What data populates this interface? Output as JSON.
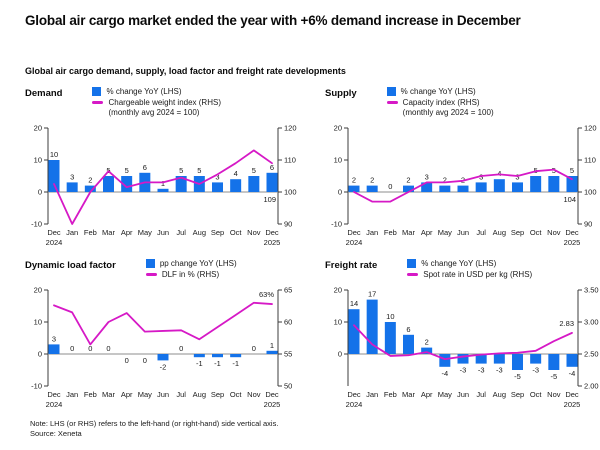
{
  "title": "Global air cargo market ended the year with +6% demand increase in December",
  "subtitle": "Global air cargo demand, supply, load factor and freight rate developments",
  "note": {
    "line1": "Note: LHS (or RHS) refers to the left-hand (or right-hand) side vertical axis.",
    "line2": "Source: Xeneta"
  },
  "colors": {
    "bar": "#1472e9",
    "line": "#d619c6",
    "text": "#1a1a1a",
    "axis": "#3c3c3c",
    "zero_line": "#8c8c8c"
  },
  "months": [
    "Dec",
    "Jan",
    "Feb",
    "Mar",
    "Apr",
    "May",
    "Jun",
    "Jul",
    "Aug",
    "Sep",
    "Oct",
    "Nov",
    "Dec"
  ],
  "start_year": "2024",
  "end_year": "2025",
  "chart_data": [
    {
      "type": "bar+line",
      "title": "Demand",
      "legend": {
        "bar": "% change YoY (LHS)",
        "line": "Chargeable weight index (RHS)",
        "line2": "(monthly avg 2024 = 100)"
      },
      "lhs_ticks": [
        20,
        10,
        0,
        -10
      ],
      "lhs_tick_labels": [
        "20",
        "10",
        "0",
        "-10"
      ],
      "rhs_ticks": [
        120,
        110,
        100,
        90
      ],
      "rhs_tick_labels": [
        "120",
        "110",
        "100",
        "90"
      ],
      "bar_values": [
        10,
        3,
        2,
        5,
        5,
        6,
        1,
        5,
        5,
        3,
        4,
        5,
        6
      ],
      "bar_labels": [
        "10",
        "3",
        "2",
        "5",
        "5",
        "6",
        "1",
        "5",
        "5",
        "3",
        "4",
        "5",
        "6"
      ],
      "line_values": [
        102.5,
        90,
        100,
        106.5,
        101.5,
        103,
        103,
        104.5,
        102.5,
        105.5,
        109,
        113,
        109
      ],
      "end_label": {
        "text": "109",
        "position": "below-zero"
      }
    },
    {
      "type": "bar+line",
      "title": "Supply",
      "legend": {
        "bar": "% change YoY (LHS)",
        "line": "Capacity index (RHS)",
        "line2": "(monthly avg 2024 = 100)"
      },
      "lhs_ticks": [
        20,
        10,
        0,
        -10
      ],
      "lhs_tick_labels": [
        "20",
        "10",
        "0",
        "-10"
      ],
      "rhs_ticks": [
        120,
        110,
        100,
        90
      ],
      "rhs_tick_labels": [
        "120",
        "110",
        "100",
        "90"
      ],
      "bar_values": [
        2,
        2,
        0,
        2,
        3,
        2,
        2,
        3,
        4,
        3,
        5,
        5,
        5
      ],
      "bar_labels": [
        "2",
        "2",
        "0",
        "2",
        "3",
        "2",
        "2",
        "3",
        "4",
        "3",
        "5",
        "5",
        "5"
      ],
      "line_values": [
        100,
        97,
        97,
        100,
        103,
        103,
        103.5,
        105,
        105.5,
        105,
        106.5,
        107,
        104
      ],
      "end_label": {
        "text": "104",
        "position": "below-zero"
      }
    },
    {
      "type": "bar+line",
      "title": "Dynamic load factor",
      "legend": {
        "bar": "pp change YoY (LHS)",
        "line": "DLF in % (RHS)"
      },
      "lhs_ticks": [
        20,
        10,
        0,
        -10
      ],
      "lhs_tick_labels": [
        "20",
        "10",
        "0",
        "-10"
      ],
      "rhs_ticks": [
        65,
        60,
        55,
        50
      ],
      "rhs_tick_labels": [
        "65",
        "60",
        "55",
        "50"
      ],
      "bar_values": [
        3,
        0,
        0,
        0,
        0,
        0,
        -2,
        0,
        -1,
        -1,
        -1,
        0,
        1
      ],
      "bar_labels": [
        "3",
        "0",
        "0",
        "0",
        "0",
        "0",
        "-2",
        "0",
        "-1",
        "-1",
        "-1",
        "0",
        "1"
      ],
      "bar_label_pos": [
        "above",
        "above",
        "above",
        "above",
        "below",
        "below",
        "below",
        "above",
        "below",
        "below",
        "below",
        "above",
        "above"
      ],
      "line_values": [
        62.6,
        61.5,
        56.5,
        60,
        61.4,
        58.5,
        58.6,
        58.7,
        57.3,
        59.2,
        61.1,
        63,
        62.8
      ],
      "end_label": {
        "text": "63%",
        "position": "above-end"
      }
    },
    {
      "type": "bar+line",
      "title": "Freight rate",
      "legend": {
        "bar": "% change YoY (LHS)",
        "line": "Spot rate in USD per kg (RHS)"
      },
      "lhs_ticks": [
        20,
        10,
        0
      ],
      "lhs_tick_labels": [
        "20",
        "10",
        "0"
      ],
      "rhs_ticks": [
        3.5,
        3.0,
        2.5,
        2.0
      ],
      "rhs_tick_labels": [
        "3.50",
        "3.00",
        "2.50",
        "2.00"
      ],
      "bar_values": [
        14,
        17,
        10,
        6,
        2,
        -4,
        -3,
        -3,
        -3,
        -5,
        -3,
        -5,
        -4
      ],
      "bar_labels": [
        "14",
        "17",
        "10",
        "6",
        "2",
        "-4",
        "-3",
        "-3",
        "-3",
        "-5",
        "-3",
        "-5",
        "-4"
      ],
      "line_values": [
        2.95,
        2.65,
        2.47,
        2.48,
        2.53,
        2.42,
        2.46,
        2.49,
        2.51,
        2.52,
        2.55,
        2.7,
        2.83
      ],
      "end_label": {
        "text": "2.83",
        "position": "above-end"
      }
    }
  ]
}
